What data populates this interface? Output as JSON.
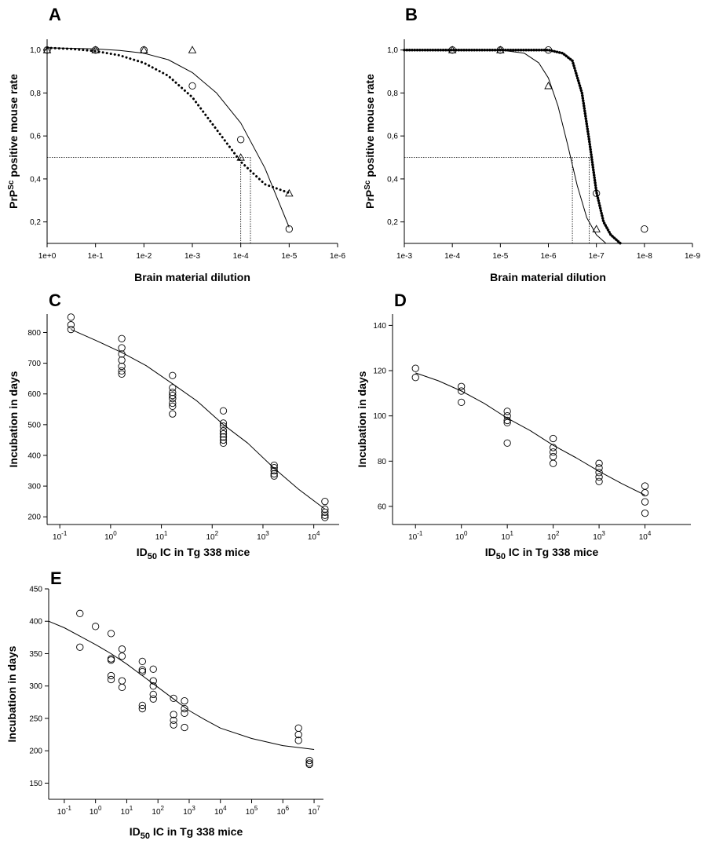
{
  "panels": [
    "A",
    "B",
    "C",
    "D",
    "E"
  ],
  "chart_data": [
    {
      "panel": "A",
      "type": "scatter",
      "xscale": "log-reversed",
      "xlabel": "Brain material dilution",
      "ylabel_main": "PrP",
      "ylabel_sup": "Sc",
      "ylabel_rest": " positive mouse rate",
      "x_ticks": [
        "1e+0",
        "1e-1",
        "1e-2",
        "1e-3",
        "1e-4",
        "1e-5",
        "1e-6"
      ],
      "x_tick_exponents": [
        0,
        -1,
        -2,
        -3,
        -4,
        -5,
        -6
      ],
      "y_ticks": [
        "0,2",
        "0,4",
        "0,6",
        "0,8",
        "1,0"
      ],
      "y_tick_values": [
        0.2,
        0.4,
        0.6,
        0.8,
        1.0
      ],
      "xlim_exp": [
        0,
        -6
      ],
      "ylim": [
        0.1,
        1.05
      ],
      "series": [
        {
          "marker": "circle",
          "points": [
            [
              0,
              1.0
            ],
            [
              -1,
              1.0
            ],
            [
              -2,
              1.0
            ],
            [
              -3,
              0.833
            ],
            [
              -4,
              0.583
            ],
            [
              -5,
              0.167
            ]
          ]
        },
        {
          "marker": "triangle",
          "points": [
            [
              0,
              1.0
            ],
            [
              -1,
              1.0
            ],
            [
              -2,
              1.0
            ],
            [
              -3,
              1.0
            ],
            [
              -4,
              0.5
            ],
            [
              -5,
              0.333
            ]
          ]
        }
      ],
      "fits": [
        {
          "style": "solid",
          "points": [
            [
              0,
              1.01
            ],
            [
              -0.5,
              1.008
            ],
            [
              -1,
              1.005
            ],
            [
              -1.5,
              0.998
            ],
            [
              -2,
              0.985
            ],
            [
              -2.5,
              0.955
            ],
            [
              -3,
              0.895
            ],
            [
              -3.5,
              0.8
            ],
            [
              -4,
              0.66
            ],
            [
              -4.5,
              0.45
            ],
            [
              -5,
              0.175
            ]
          ]
        },
        {
          "style": "dotted",
          "points": [
            [
              0,
              1.01
            ],
            [
              -0.5,
              1.005
            ],
            [
              -1,
              0.995
            ],
            [
              -1.5,
              0.975
            ],
            [
              -2,
              0.94
            ],
            [
              -2.5,
              0.88
            ],
            [
              -3,
              0.78
            ],
            [
              -3.5,
              0.63
            ],
            [
              -4,
              0.48
            ],
            [
              -4.5,
              0.375
            ],
            [
              -5,
              0.335
            ]
          ]
        }
      ],
      "reference_lines": {
        "y": 0.5,
        "x_exps": [
          -4,
          -4.2
        ]
      }
    },
    {
      "panel": "B",
      "type": "scatter",
      "xscale": "log-reversed",
      "xlabel": "Brain material dilution",
      "ylabel_main": "PrP",
      "ylabel_sup": "Sc",
      "ylabel_rest": " positive mouse rate",
      "x_ticks": [
        "1e-3",
        "1e-4",
        "1e-5",
        "1e-6",
        "1e-7",
        "1e-8",
        "1e-9"
      ],
      "x_tick_exponents": [
        -3,
        -4,
        -5,
        -6,
        -7,
        -8,
        -9
      ],
      "y_ticks": [
        "0,2",
        "0,4",
        "0,6",
        "0,8",
        "1,0"
      ],
      "y_tick_values": [
        0.2,
        0.4,
        0.6,
        0.8,
        1.0
      ],
      "xlim_exp": [
        -3,
        -9
      ],
      "ylim": [
        0.1,
        1.05
      ],
      "series": [
        {
          "marker": "circle",
          "points": [
            [
              -4,
              1.0
            ],
            [
              -5,
              1.0
            ],
            [
              -6,
              1.0
            ],
            [
              -7,
              0.333
            ],
            [
              -8,
              0.167
            ]
          ]
        },
        {
          "marker": "triangle",
          "points": [
            [
              -4,
              1.0
            ],
            [
              -5,
              1.0
            ],
            [
              -6,
              0.833
            ],
            [
              -7,
              0.167
            ]
          ]
        }
      ],
      "fits": [
        {
          "style": "solid",
          "points": [
            [
              -3,
              1.0
            ],
            [
              -4,
              1.0
            ],
            [
              -5,
              1.0
            ],
            [
              -5.5,
              0.985
            ],
            [
              -5.8,
              0.94
            ],
            [
              -6,
              0.87
            ],
            [
              -6.2,
              0.74
            ],
            [
              -6.4,
              0.56
            ],
            [
              -6.6,
              0.37
            ],
            [
              -6.8,
              0.22
            ],
            [
              -7,
              0.14
            ],
            [
              -7.2,
              0.1
            ]
          ]
        },
        {
          "style": "thick-dotted",
          "points": [
            [
              -3,
              1.0
            ],
            [
              -4,
              1.0
            ],
            [
              -5,
              1.0
            ],
            [
              -6,
              1.0
            ],
            [
              -6.3,
              0.985
            ],
            [
              -6.5,
              0.95
            ],
            [
              -6.7,
              0.8
            ],
            [
              -6.85,
              0.58
            ],
            [
              -7,
              0.34
            ],
            [
              -7.15,
              0.2
            ],
            [
              -7.3,
              0.14
            ],
            [
              -7.5,
              0.1
            ]
          ]
        }
      ],
      "reference_lines": {
        "y": 0.5,
        "x_exps": [
          -6.5,
          -6.85
        ]
      }
    },
    {
      "panel": "C",
      "type": "scatter",
      "xscale": "log",
      "xlabel_main": "ID",
      "xlabel_sub": "50",
      "xlabel_rest": " IC in Tg 338 mice",
      "ylabel": "Incubation in days",
      "x_ticks": [
        "10",
        "10",
        "10",
        "10",
        "10",
        "10"
      ],
      "x_tick_sups": [
        "-1",
        "0",
        "1",
        "2",
        "3",
        "4"
      ],
      "x_tick_exponents": [
        -1,
        0,
        1,
        2,
        3,
        4
      ],
      "y_ticks": [
        "200",
        "300",
        "400",
        "500",
        "600",
        "700",
        "800"
      ],
      "y_tick_values": [
        200,
        300,
        400,
        500,
        600,
        700,
        800
      ],
      "xlim_exp": [
        -1.25,
        4.5
      ],
      "ylim": [
        175,
        860
      ],
      "series": [
        {
          "marker": "circle",
          "points": [
            [
              -0.78,
              850
            ],
            [
              -0.78,
              825
            ],
            [
              -0.78,
              810
            ],
            [
              0.22,
              780
            ],
            [
              0.22,
              750
            ],
            [
              0.22,
              730
            ],
            [
              0.22,
              710
            ],
            [
              0.22,
              690
            ],
            [
              0.22,
              675
            ],
            [
              0.22,
              665
            ],
            [
              1.22,
              660
            ],
            [
              1.22,
              620
            ],
            [
              1.22,
              605
            ],
            [
              1.22,
              595
            ],
            [
              1.22,
              585
            ],
            [
              1.22,
              570
            ],
            [
              1.22,
              560
            ],
            [
              1.22,
              535
            ],
            [
              2.22,
              545
            ],
            [
              2.22,
              505
            ],
            [
              2.22,
              495
            ],
            [
              2.22,
              480
            ],
            [
              2.22,
              470
            ],
            [
              2.22,
              460
            ],
            [
              2.22,
              450
            ],
            [
              2.22,
              440
            ],
            [
              3.22,
              368
            ],
            [
              3.22,
              360
            ],
            [
              3.22,
              350
            ],
            [
              3.22,
              340
            ],
            [
              3.22,
              333
            ],
            [
              4.22,
              250
            ],
            [
              4.22,
              225
            ],
            [
              4.22,
              215
            ],
            [
              4.22,
              205
            ],
            [
              4.22,
              198
            ]
          ]
        }
      ],
      "fits": [
        {
          "style": "solid",
          "points": [
            [
              -0.78,
              810
            ],
            [
              -0.3,
              775
            ],
            [
              0.22,
              735
            ],
            [
              0.7,
              692
            ],
            [
              1.22,
              633
            ],
            [
              1.7,
              577
            ],
            [
              2.22,
              500
            ],
            [
              2.7,
              440
            ],
            [
              3.22,
              358
            ],
            [
              3.7,
              290
            ],
            [
              4.22,
              225
            ]
          ]
        }
      ]
    },
    {
      "panel": "D",
      "type": "scatter",
      "xscale": "log",
      "xlabel_main": "ID",
      "xlabel_sub": "50",
      "xlabel_rest": " IC in Tg 338 mice",
      "ylabel": "Incubation in days",
      "x_ticks": [
        "10",
        "10",
        "10",
        "10",
        "10",
        "10"
      ],
      "x_tick_sups": [
        "-1",
        "0",
        "1",
        "2",
        "3",
        "4"
      ],
      "x_tick_exponents": [
        -1,
        0,
        1,
        2,
        3,
        4
      ],
      "y_ticks": [
        "60",
        "80",
        "100",
        "120",
        "140"
      ],
      "y_tick_values": [
        60,
        80,
        100,
        120,
        140
      ],
      "xlim_exp": [
        -1.5,
        5
      ],
      "ylim": [
        52,
        145
      ],
      "series": [
        {
          "marker": "circle",
          "points": [
            [
              -1,
              121
            ],
            [
              -1,
              117
            ],
            [
              0,
              113
            ],
            [
              0,
              111
            ],
            [
              0,
              106
            ],
            [
              1,
              102
            ],
            [
              1,
              100
            ],
            [
              1,
              98
            ],
            [
              1,
              97
            ],
            [
              1,
              88
            ],
            [
              2,
              90
            ],
            [
              2,
              86
            ],
            [
              2,
              84
            ],
            [
              2,
              82
            ],
            [
              2,
              79
            ],
            [
              3,
              79
            ],
            [
              3,
              77
            ],
            [
              3,
              75
            ],
            [
              3,
              73
            ],
            [
              3,
              71
            ],
            [
              4,
              69
            ],
            [
              4,
              66
            ],
            [
              4,
              62
            ],
            [
              4,
              57
            ]
          ]
        }
      ],
      "fits": [
        {
          "style": "solid",
          "points": [
            [
              -1,
              119
            ],
            [
              -0.5,
              115.5
            ],
            [
              0,
              111
            ],
            [
              0.5,
              105.5
            ],
            [
              1,
              99
            ],
            [
              1.5,
              93.5
            ],
            [
              2,
              87
            ],
            [
              2.5,
              81.5
            ],
            [
              3,
              75.5
            ],
            [
              3.5,
              70
            ],
            [
              4,
              65
            ]
          ]
        }
      ]
    },
    {
      "panel": "E",
      "type": "scatter",
      "xscale": "log",
      "xlabel_main": "ID",
      "xlabel_sub": "50",
      "xlabel_rest": " IC in Tg 338 mice",
      "ylabel": "Incubation in days",
      "x_ticks": [
        "10",
        "10",
        "10",
        "10",
        "10",
        "10",
        "10",
        "10",
        "10"
      ],
      "x_tick_sups": [
        "-1",
        "0",
        "1",
        "2",
        "3",
        "4",
        "5",
        "6",
        "7"
      ],
      "x_tick_exponents": [
        -1,
        0,
        1,
        2,
        3,
        4,
        5,
        6,
        7
      ],
      "y_ticks": [
        "150",
        "200",
        "250",
        "300",
        "350",
        "400",
        "450"
      ],
      "y_tick_values": [
        150,
        200,
        250,
        300,
        350,
        400,
        450
      ],
      "xlim_exp": [
        -1.5,
        7.3
      ],
      "ylim": [
        125,
        450
      ],
      "series": [
        {
          "marker": "circle",
          "points": [
            [
              -0.5,
              412
            ],
            [
              -0.5,
              360
            ],
            [
              0,
              392
            ],
            [
              0.5,
              381
            ],
            [
              0.5,
              342
            ],
            [
              0.5,
              340
            ],
            [
              0.5,
              316
            ],
            [
              0.5,
              310
            ],
            [
              0.85,
              357
            ],
            [
              0.85,
              346
            ],
            [
              0.85,
              308
            ],
            [
              0.85,
              298
            ],
            [
              1.5,
              338
            ],
            [
              1.5,
              325
            ],
            [
              1.5,
              322
            ],
            [
              1.5,
              270
            ],
            [
              1.5,
              265
            ],
            [
              1.85,
              326
            ],
            [
              1.85,
              308
            ],
            [
              1.85,
              300
            ],
            [
              1.85,
              287
            ],
            [
              1.85,
              280
            ],
            [
              2.5,
              281
            ],
            [
              2.5,
              256
            ],
            [
              2.5,
              247
            ],
            [
              2.5,
              240
            ],
            [
              2.85,
              277
            ],
            [
              2.85,
              265
            ],
            [
              2.85,
              258
            ],
            [
              2.85,
              236
            ],
            [
              6.5,
              235
            ],
            [
              6.5,
              225
            ],
            [
              6.5,
              216
            ],
            [
              6.85,
              185
            ],
            [
              6.85,
              181
            ],
            [
              6.85,
              179
            ]
          ]
        }
      ],
      "fits": [
        {
          "style": "solid",
          "points": [
            [
              -1.5,
              400
            ],
            [
              -1,
              390
            ],
            [
              -0.5,
              377
            ],
            [
              0,
              364
            ],
            [
              0.5,
              350
            ],
            [
              1,
              334
            ],
            [
              1.5,
              316
            ],
            [
              2,
              298
            ],
            [
              2.5,
              280
            ],
            [
              3,
              262
            ],
            [
              3.5,
              248
            ],
            [
              4,
              235
            ],
            [
              5,
              219
            ],
            [
              6,
              208
            ],
            [
              7,
              202
            ]
          ]
        }
      ]
    }
  ]
}
